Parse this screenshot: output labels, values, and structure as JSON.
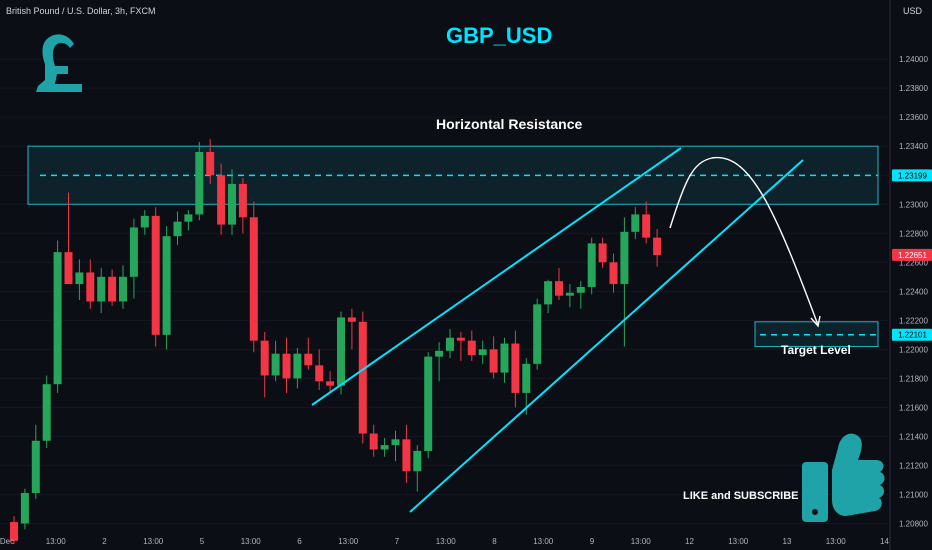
{
  "header": {
    "symbol_line": "British Pound / U.S. Dollar, 3h, FXCM",
    "currency": "USD"
  },
  "chart_data": {
    "type": "candlestick",
    "title": "GBP_USD",
    "symbol": "British Pound / U.S. Dollar",
    "interval": "3h",
    "source": "FXCM",
    "ylim": [
      1.207,
      1.2438
    ],
    "y_ticks": [
      "1.24000",
      "1.23800",
      "1.23600",
      "1.23400",
      "1.23200",
      "1.23000",
      "1.22800",
      "1.22600",
      "1.22400",
      "1.22200",
      "1.22000",
      "1.21800",
      "1.21600",
      "1.21400",
      "1.21200",
      "1.21000",
      "1.20800"
    ],
    "x_ticks": [
      "Dec",
      "13:00",
      "2",
      "13:00",
      "5",
      "13:00",
      "6",
      "13:00",
      "7",
      "13:00",
      "8",
      "13:00",
      "9",
      "13:00",
      "12",
      "13:00",
      "13",
      "13:00",
      "14"
    ],
    "price_labels": [
      {
        "text": "1.23199",
        "value": 1.23199,
        "color": "#00e5ff"
      },
      {
        "text": "1.22651",
        "value": 1.22651,
        "color": "#f23645"
      },
      {
        "text": "1.22101",
        "value": 1.22101,
        "color": "#00e5ff"
      }
    ],
    "candles": [
      {
        "o": 1.2081,
        "h": 1.2085,
        "l": 1.2066,
        "c": 1.2068
      },
      {
        "o": 1.208,
        "h": 1.2104,
        "l": 1.2076,
        "c": 1.2101
      },
      {
        "o": 1.2101,
        "h": 1.2148,
        "l": 1.2097,
        "c": 1.2137
      },
      {
        "o": 1.2137,
        "h": 1.2182,
        "l": 1.2132,
        "c": 1.2176
      },
      {
        "o": 1.2176,
        "h": 1.2275,
        "l": 1.217,
        "c": 1.2267
      },
      {
        "o": 1.2267,
        "h": 1.2308,
        "l": 1.2248,
        "c": 1.2245
      },
      {
        "o": 1.2245,
        "h": 1.2262,
        "l": 1.2234,
        "c": 1.2253
      },
      {
        "o": 1.2253,
        "h": 1.2262,
        "l": 1.2228,
        "c": 1.2233
      },
      {
        "o": 1.2233,
        "h": 1.2256,
        "l": 1.2225,
        "c": 1.225
      },
      {
        "o": 1.225,
        "h": 1.2255,
        "l": 1.223,
        "c": 1.2233
      },
      {
        "o": 1.2233,
        "h": 1.2258,
        "l": 1.2228,
        "c": 1.225
      },
      {
        "o": 1.225,
        "h": 1.229,
        "l": 1.2235,
        "c": 1.2284
      },
      {
        "o": 1.2284,
        "h": 1.2296,
        "l": 1.2279,
        "c": 1.2292
      },
      {
        "o": 1.2292,
        "h": 1.2298,
        "l": 1.2202,
        "c": 1.221
      },
      {
        "o": 1.221,
        "h": 1.2285,
        "l": 1.22,
        "c": 1.2278
      },
      {
        "o": 1.2278,
        "h": 1.2295,
        "l": 1.2272,
        "c": 1.2288
      },
      {
        "o": 1.2288,
        "h": 1.2296,
        "l": 1.2282,
        "c": 1.2293
      },
      {
        "o": 1.2293,
        "h": 1.2343,
        "l": 1.2289,
        "c": 1.2336
      },
      {
        "o": 1.2336,
        "h": 1.2345,
        "l": 1.2314,
        "c": 1.232
      },
      {
        "o": 1.232,
        "h": 1.2328,
        "l": 1.2279,
        "c": 1.2286
      },
      {
        "o": 1.2286,
        "h": 1.2324,
        "l": 1.2279,
        "c": 1.2314
      },
      {
        "o": 1.2314,
        "h": 1.2318,
        "l": 1.228,
        "c": 1.2291
      },
      {
        "o": 1.2291,
        "h": 1.2302,
        "l": 1.2198,
        "c": 1.2206
      },
      {
        "o": 1.2206,
        "h": 1.2212,
        "l": 1.2167,
        "c": 1.2182
      },
      {
        "o": 1.2182,
        "h": 1.2206,
        "l": 1.2178,
        "c": 1.2197
      },
      {
        "o": 1.2197,
        "h": 1.2208,
        "l": 1.217,
        "c": 1.218
      },
      {
        "o": 1.218,
        "h": 1.2201,
        "l": 1.2173,
        "c": 1.2197
      },
      {
        "o": 1.2197,
        "h": 1.2208,
        "l": 1.2186,
        "c": 1.2189
      },
      {
        "o": 1.2189,
        "h": 1.22,
        "l": 1.2172,
        "c": 1.2178
      },
      {
        "o": 1.2178,
        "h": 1.2185,
        "l": 1.217,
        "c": 1.2175
      },
      {
        "o": 1.2175,
        "h": 1.2226,
        "l": 1.2169,
        "c": 1.2222
      },
      {
        "o": 1.2222,
        "h": 1.2228,
        "l": 1.22,
        "c": 1.2219
      },
      {
        "o": 1.2219,
        "h": 1.2226,
        "l": 1.2135,
        "c": 1.2142
      },
      {
        "o": 1.2142,
        "h": 1.2148,
        "l": 1.2126,
        "c": 1.2131
      },
      {
        "o": 1.2131,
        "h": 1.2139,
        "l": 1.2126,
        "c": 1.2134
      },
      {
        "o": 1.2134,
        "h": 1.2144,
        "l": 1.2123,
        "c": 1.2138
      },
      {
        "o": 1.2138,
        "h": 1.2148,
        "l": 1.2108,
        "c": 1.2116
      },
      {
        "o": 1.2116,
        "h": 1.2134,
        "l": 1.2102,
        "c": 1.213
      },
      {
        "o": 1.213,
        "h": 1.2198,
        "l": 1.2125,
        "c": 1.2195
      },
      {
        "o": 1.2195,
        "h": 1.2205,
        "l": 1.2178,
        "c": 1.2199
      },
      {
        "o": 1.2199,
        "h": 1.2214,
        "l": 1.2194,
        "c": 1.2208
      },
      {
        "o": 1.2208,
        "h": 1.2212,
        "l": 1.2192,
        "c": 1.2206
      },
      {
        "o": 1.2206,
        "h": 1.2213,
        "l": 1.2192,
        "c": 1.2196
      },
      {
        "o": 1.2196,
        "h": 1.2206,
        "l": 1.219,
        "c": 1.22
      },
      {
        "o": 1.22,
        "h": 1.2209,
        "l": 1.218,
        "c": 1.2184
      },
      {
        "o": 1.2184,
        "h": 1.2208,
        "l": 1.2177,
        "c": 1.2204
      },
      {
        "o": 1.2204,
        "h": 1.2213,
        "l": 1.216,
        "c": 1.217
      },
      {
        "o": 1.217,
        "h": 1.2194,
        "l": 1.2155,
        "c": 1.219
      },
      {
        "o": 1.219,
        "h": 1.2235,
        "l": 1.2186,
        "c": 1.2231
      },
      {
        "o": 1.2231,
        "h": 1.2248,
        "l": 1.2225,
        "c": 1.2247
      },
      {
        "o": 1.2247,
        "h": 1.2256,
        "l": 1.2234,
        "c": 1.2237
      },
      {
        "o": 1.2237,
        "h": 1.2245,
        "l": 1.2229,
        "c": 1.2239
      },
      {
        "o": 1.2239,
        "h": 1.2247,
        "l": 1.2228,
        "c": 1.2243
      },
      {
        "o": 1.2243,
        "h": 1.2277,
        "l": 1.2238,
        "c": 1.2273
      },
      {
        "o": 1.2273,
        "h": 1.2277,
        "l": 1.2256,
        "c": 1.226
      },
      {
        "o": 1.226,
        "h": 1.2266,
        "l": 1.2239,
        "c": 1.2245
      },
      {
        "o": 1.2245,
        "h": 1.2291,
        "l": 1.2202,
        "c": 1.2281
      },
      {
        "o": 1.2281,
        "h": 1.2298,
        "l": 1.2276,
        "c": 1.2293
      },
      {
        "o": 1.2293,
        "h": 1.2302,
        "l": 1.2273,
        "c": 1.2277
      },
      {
        "o": 1.2277,
        "h": 1.2283,
        "l": 1.2257,
        "c": 1.2265
      }
    ],
    "zones": [
      {
        "name": "resistance",
        "label": "Horizontal Resistance",
        "y_from": 1.23,
        "y_to": 1.234,
        "level": 1.23199
      },
      {
        "name": "target",
        "label": "Target Level",
        "y_from": 1.2202,
        "y_to": 1.2219,
        "level": 1.22101
      }
    ],
    "colors": {
      "up": "#26a65b",
      "down": "#f23645",
      "accent": "#00e5ff",
      "zone_fill": "#0d2a33"
    }
  },
  "annotations": {
    "resistance_label": "Horizontal Resistance",
    "target_label": "Target Level",
    "cta": "LIKE and SUBSCRIBE"
  },
  "icons": {
    "logo": "pound-sign-icon",
    "thumb": "thumbs-up-icon"
  }
}
